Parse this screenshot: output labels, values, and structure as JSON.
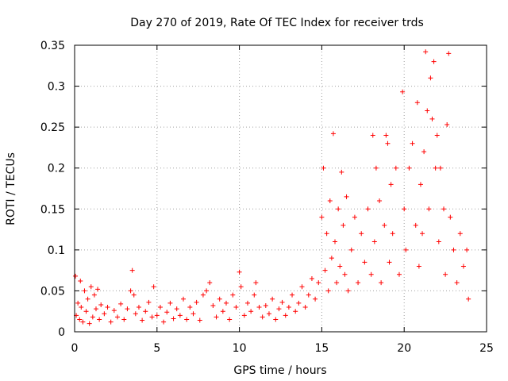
{
  "chart_data": {
    "type": "scatter",
    "title": "Day 270 of 2019, Rate Of TEC Index for receiver trds",
    "xlabel": "GPS time / hours",
    "ylabel": "ROTI / TECUs",
    "xlim": [
      0,
      25
    ],
    "ylim": [
      0,
      0.35
    ],
    "x_ticks": [
      0,
      5,
      10,
      15,
      20,
      25
    ],
    "x_tick_labels": [
      "0",
      "5",
      "10",
      "15",
      "20",
      "25"
    ],
    "y_ticks": [
      0,
      0.05,
      0.1,
      0.15,
      0.2,
      0.25,
      0.3,
      0.35
    ],
    "y_tick_labels": [
      "0",
      "0.05",
      "0.1",
      "0.15",
      "0.2",
      "0.25",
      "0.3",
      "0.35"
    ],
    "grid": true,
    "marker": "+",
    "series_color": "#ff0000",
    "series": [
      {
        "name": "ROTI",
        "points": [
          [
            0.05,
            0.068
          ],
          [
            0.1,
            0.02
          ],
          [
            0.2,
            0.035
          ],
          [
            0.3,
            0.015
          ],
          [
            0.35,
            0.062
          ],
          [
            0.4,
            0.03
          ],
          [
            0.5,
            0.012
          ],
          [
            0.6,
            0.05
          ],
          [
            0.7,
            0.025
          ],
          [
            0.8,
            0.04
          ],
          [
            0.9,
            0.01
          ],
          [
            1.0,
            0.055
          ],
          [
            1.1,
            0.018
          ],
          [
            1.2,
            0.045
          ],
          [
            1.3,
            0.028
          ],
          [
            1.4,
            0.052
          ],
          [
            1.5,
            0.015
          ],
          [
            1.6,
            0.033
          ],
          [
            1.8,
            0.022
          ],
          [
            2.0,
            0.03
          ],
          [
            2.2,
            0.012
          ],
          [
            2.4,
            0.026
          ],
          [
            2.6,
            0.018
          ],
          [
            2.8,
            0.034
          ],
          [
            3.0,
            0.015
          ],
          [
            3.2,
            0.028
          ],
          [
            3.4,
            0.05
          ],
          [
            3.5,
            0.075
          ],
          [
            3.6,
            0.045
          ],
          [
            3.7,
            0.022
          ],
          [
            3.9,
            0.03
          ],
          [
            4.1,
            0.014
          ],
          [
            4.3,
            0.025
          ],
          [
            4.5,
            0.036
          ],
          [
            4.7,
            0.018
          ],
          [
            4.8,
            0.055
          ],
          [
            5.0,
            0.02
          ],
          [
            5.2,
            0.03
          ],
          [
            5.4,
            0.012
          ],
          [
            5.6,
            0.024
          ],
          [
            5.8,
            0.035
          ],
          [
            6.0,
            0.016
          ],
          [
            6.2,
            0.028
          ],
          [
            6.4,
            0.02
          ],
          [
            6.6,
            0.04
          ],
          [
            6.8,
            0.015
          ],
          [
            7.0,
            0.03
          ],
          [
            7.2,
            0.022
          ],
          [
            7.4,
            0.036
          ],
          [
            7.6,
            0.014
          ],
          [
            7.8,
            0.045
          ],
          [
            8.0,
            0.05
          ],
          [
            8.2,
            0.06
          ],
          [
            8.4,
            0.032
          ],
          [
            8.6,
            0.018
          ],
          [
            8.8,
            0.04
          ],
          [
            9.0,
            0.025
          ],
          [
            9.2,
            0.035
          ],
          [
            9.4,
            0.015
          ],
          [
            9.6,
            0.045
          ],
          [
            9.8,
            0.03
          ],
          [
            10.0,
            0.073
          ],
          [
            10.1,
            0.055
          ],
          [
            10.3,
            0.02
          ],
          [
            10.5,
            0.035
          ],
          [
            10.7,
            0.025
          ],
          [
            10.9,
            0.045
          ],
          [
            11.0,
            0.06
          ],
          [
            11.2,
            0.03
          ],
          [
            11.4,
            0.018
          ],
          [
            11.6,
            0.032
          ],
          [
            11.8,
            0.022
          ],
          [
            12.0,
            0.04
          ],
          [
            12.2,
            0.015
          ],
          [
            12.4,
            0.028
          ],
          [
            12.6,
            0.036
          ],
          [
            12.8,
            0.02
          ],
          [
            13.0,
            0.03
          ],
          [
            13.2,
            0.045
          ],
          [
            13.4,
            0.025
          ],
          [
            13.6,
            0.035
          ],
          [
            13.8,
            0.055
          ],
          [
            14.0,
            0.03
          ],
          [
            14.2,
            0.045
          ],
          [
            14.4,
            0.065
          ],
          [
            14.6,
            0.04
          ],
          [
            14.8,
            0.06
          ],
          [
            15.0,
            0.14
          ],
          [
            15.1,
            0.2
          ],
          [
            15.2,
            0.075
          ],
          [
            15.3,
            0.12
          ],
          [
            15.4,
            0.05
          ],
          [
            15.5,
            0.16
          ],
          [
            15.6,
            0.09
          ],
          [
            15.7,
            0.242
          ],
          [
            15.8,
            0.11
          ],
          [
            15.9,
            0.06
          ],
          [
            16.0,
            0.15
          ],
          [
            16.1,
            0.08
          ],
          [
            16.2,
            0.195
          ],
          [
            16.3,
            0.13
          ],
          [
            16.4,
            0.07
          ],
          [
            16.5,
            0.165
          ],
          [
            16.6,
            0.05
          ],
          [
            16.8,
            0.1
          ],
          [
            17.0,
            0.14
          ],
          [
            17.2,
            0.06
          ],
          [
            17.4,
            0.12
          ],
          [
            17.6,
            0.085
          ],
          [
            17.8,
            0.15
          ],
          [
            18.0,
            0.07
          ],
          [
            18.1,
            0.24
          ],
          [
            18.2,
            0.11
          ],
          [
            18.3,
            0.2
          ],
          [
            18.5,
            0.16
          ],
          [
            18.6,
            0.06
          ],
          [
            18.8,
            0.13
          ],
          [
            18.9,
            0.24
          ],
          [
            19.0,
            0.23
          ],
          [
            19.1,
            0.085
          ],
          [
            19.2,
            0.18
          ],
          [
            19.3,
            0.12
          ],
          [
            19.5,
            0.2
          ],
          [
            19.7,
            0.07
          ],
          [
            19.9,
            0.293
          ],
          [
            20.0,
            0.15
          ],
          [
            20.1,
            0.1
          ],
          [
            20.3,
            0.2
          ],
          [
            20.5,
            0.23
          ],
          [
            20.7,
            0.13
          ],
          [
            20.8,
            0.28
          ],
          [
            20.9,
            0.08
          ],
          [
            21.0,
            0.18
          ],
          [
            21.1,
            0.12
          ],
          [
            21.2,
            0.22
          ],
          [
            21.3,
            0.342
          ],
          [
            21.4,
            0.27
          ],
          [
            21.5,
            0.15
          ],
          [
            21.6,
            0.31
          ],
          [
            21.7,
            0.26
          ],
          [
            21.8,
            0.33
          ],
          [
            21.9,
            0.2
          ],
          [
            22.0,
            0.24
          ],
          [
            22.1,
            0.11
          ],
          [
            22.2,
            0.2
          ],
          [
            22.4,
            0.15
          ],
          [
            22.5,
            0.07
          ],
          [
            22.6,
            0.253
          ],
          [
            22.7,
            0.34
          ],
          [
            22.8,
            0.14
          ],
          [
            23.0,
            0.1
          ],
          [
            23.2,
            0.06
          ],
          [
            23.4,
            0.12
          ],
          [
            23.6,
            0.08
          ],
          [
            23.8,
            0.1
          ],
          [
            23.9,
            0.04
          ]
        ]
      }
    ]
  }
}
